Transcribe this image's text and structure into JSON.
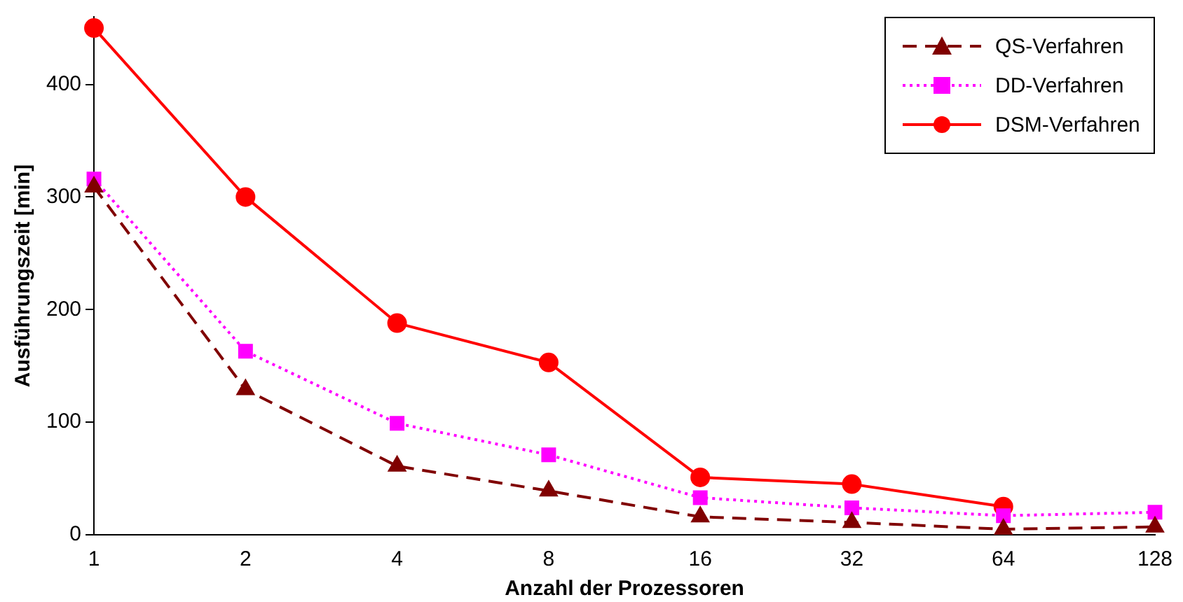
{
  "chart_data": {
    "type": "line",
    "xlabel": "Anzahl der Prozessoren",
    "ylabel": "Ausführungszeit [min]",
    "categories": [
      "1",
      "2",
      "4",
      "8",
      "16",
      "32",
      "64",
      "128"
    ],
    "series": [
      {
        "name": "QS-Verfahren",
        "color": "#800000",
        "line_style": "dashed",
        "marker": "triangle",
        "values": [
          309,
          129,
          61,
          39,
          16,
          11,
          5,
          7
        ]
      },
      {
        "name": "DD-Verfahren",
        "color": "#ff00ff",
        "line_style": "dotted",
        "marker": "square",
        "values": [
          316,
          163,
          99,
          71,
          33,
          24,
          17,
          20
        ]
      },
      {
        "name": "DSM-Verfahren",
        "color": "#ff0000",
        "line_style": "solid",
        "marker": "circle",
        "values": [
          450,
          300,
          188,
          153,
          51,
          45,
          25,
          null
        ]
      }
    ],
    "ylim": [
      0,
      460
    ],
    "yticks": [
      0,
      100,
      200,
      300,
      400
    ],
    "grid": false,
    "legend": "top right"
  }
}
